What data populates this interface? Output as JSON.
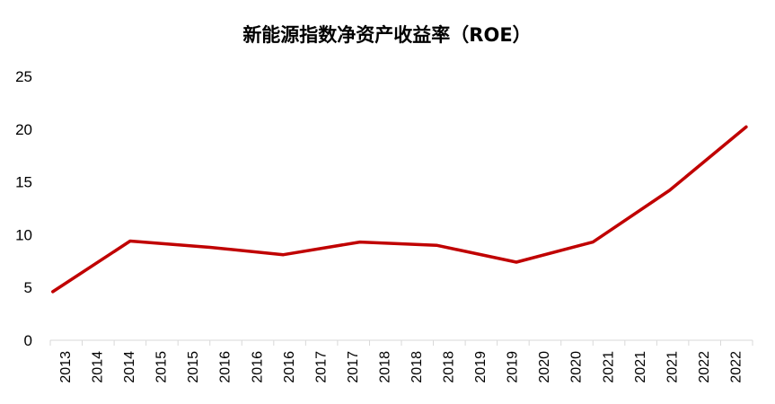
{
  "chart_data": {
    "type": "line",
    "title": "新能源指数净资产收益率（ROE）",
    "xlabel": "",
    "ylabel": "",
    "ylim": [
      0,
      25
    ],
    "yticks": [
      0,
      5,
      10,
      15,
      20,
      25
    ],
    "grid": false,
    "categories": [
      "2013",
      "2014",
      "2014",
      "2015",
      "2015",
      "2016",
      "2016",
      "2016",
      "2017",
      "2017",
      "2018",
      "2018",
      "2018",
      "2019",
      "2019",
      "2020",
      "2020",
      "2021",
      "2021",
      "2021",
      "2022",
      "2022"
    ],
    "series": [
      {
        "name": "ROE",
        "color": "#c00000",
        "points": [
          {
            "x": 0.08,
            "y": 4.6
          },
          {
            "x": 2.5,
            "y": 9.4
          },
          {
            "x": 5.0,
            "y": 8.8
          },
          {
            "x": 7.3,
            "y": 8.1
          },
          {
            "x": 9.7,
            "y": 9.3
          },
          {
            "x": 12.1,
            "y": 9.0
          },
          {
            "x": 14.6,
            "y": 7.4
          },
          {
            "x": 17.0,
            "y": 9.3
          },
          {
            "x": 19.4,
            "y": 14.2
          },
          {
            "x": 21.8,
            "y": 20.2
          }
        ]
      }
    ]
  }
}
